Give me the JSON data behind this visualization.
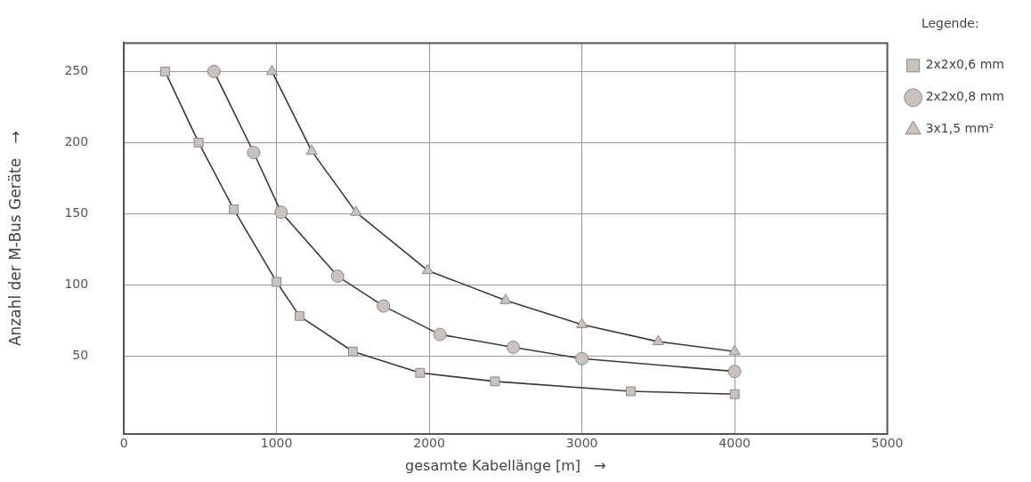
{
  "chart_data": {
    "type": "line",
    "xlabel": "gesamte Kabellänge [m]   →",
    "ylabel": "Anzahl der M-Bus Geräte   →",
    "legend_title": "Legende:",
    "legend": "top right",
    "grid": true,
    "line_style": "solid",
    "xlim": [
      0,
      5000
    ],
    "xticks": [
      0,
      1000,
      2000,
      3000,
      4000,
      5000
    ],
    "ylim": [
      -5,
      270
    ],
    "yticks": [
      50,
      100,
      150,
      200,
      250
    ],
    "series": [
      {
        "name": "2x2x0,6 mm",
        "color": "#3d3838",
        "marker": "square",
        "x": [
          270,
          490,
          720,
          1000,
          1150,
          1500,
          1940,
          2430,
          3320,
          4000
        ],
        "values": [
          250,
          200,
          153,
          102,
          78,
          53,
          38,
          32,
          25,
          23
        ]
      },
      {
        "name": "2x2x0,8 mm",
        "color": "#3d3838",
        "marker": "circle",
        "x": [
          590,
          850,
          1030,
          1400,
          1700,
          2070,
          2550,
          3000,
          4000
        ],
        "values": [
          250,
          193,
          151,
          106,
          85,
          65,
          56,
          48,
          39
        ]
      },
      {
        "name": "3x1,5 mm²",
        "color": "#3d3838",
        "marker": "triangle",
        "x": [
          970,
          1230,
          1520,
          1990,
          2500,
          3000,
          3500,
          4000
        ],
        "values": [
          250,
          194,
          151,
          110,
          89,
          72,
          60,
          53
        ]
      }
    ]
  }
}
